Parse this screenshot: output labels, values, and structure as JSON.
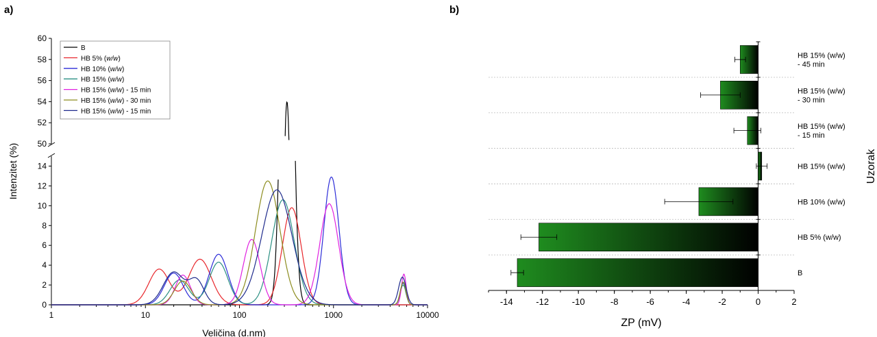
{
  "panels": {
    "a": "a)",
    "b": "b)"
  },
  "chart_data": [
    {
      "type": "line",
      "xlabel": "Veličina (d.nm)",
      "ylabel": "Intenzitet (%)",
      "xscale": "log",
      "xlim": [
        1,
        10000
      ],
      "x_ticks": [
        "1",
        "10",
        "100",
        "1000",
        "10000"
      ],
      "y_break": true,
      "y_lower": {
        "lim": [
          0,
          15
        ],
        "ticks": [
          "0",
          "2",
          "4",
          "6",
          "8",
          "10",
          "12",
          "14"
        ]
      },
      "y_upper": {
        "lim": [
          50,
          60
        ],
        "ticks": [
          "50",
          "52",
          "54",
          "56",
          "58",
          "60"
        ]
      },
      "legend_position": "top-left",
      "series": [
        {
          "name": "B",
          "name_parts": [
            "B"
          ],
          "color": "#000000",
          "peaks": [
            {
              "x": 320,
              "y": 54.0,
              "w": 0.055
            }
          ]
        },
        {
          "name": "HB 5% (w/w)",
          "name_parts": [
            "HB 5% (",
            "w/w",
            ")"
          ],
          "color": "#e8262b",
          "peaks": [
            {
              "x": 14,
              "y": 3.6,
              "w": 0.11
            },
            {
              "x": 38,
              "y": 4.6,
              "w": 0.12
            },
            {
              "x": 360,
              "y": 9.8,
              "w": 0.1
            }
          ]
        },
        {
          "name": "HB 10% (w/w)",
          "name_parts": [
            "HB 10% (",
            "w/w",
            ")"
          ],
          "color": "#2b2bd8",
          "peaks": [
            {
              "x": 20,
              "y": 3.2,
              "w": 0.1
            },
            {
              "x": 60,
              "y": 5.1,
              "w": 0.1
            },
            {
              "x": 950,
              "y": 12.9,
              "w": 0.08
            },
            {
              "x": 5500,
              "y": 2.2,
              "w": 0.03
            }
          ]
        },
        {
          "name": "HB 15% (w/w)",
          "name_parts": [
            "HB 15% (",
            "w/w",
            ")"
          ],
          "color": "#2a8f82",
          "peaks": [
            {
              "x": 23,
              "y": 2.5,
              "w": 0.1
            },
            {
              "x": 60,
              "y": 4.3,
              "w": 0.1
            },
            {
              "x": 290,
              "y": 10.6,
              "w": 0.12
            },
            {
              "x": 5500,
              "y": 2.0,
              "w": 0.03
            }
          ]
        },
        {
          "name": "HB 15% (w/w) - 15 min",
          "name_parts": [
            "HB 15% (",
            "w/w",
            ") - 15 min"
          ],
          "color": "#e020e0",
          "peaks": [
            {
              "x": 25,
              "y": 3.0,
              "w": 0.08
            },
            {
              "x": 135,
              "y": 6.6,
              "w": 0.09
            },
            {
              "x": 900,
              "y": 10.2,
              "w": 0.1
            },
            {
              "x": 5600,
              "y": 3.1,
              "w": 0.025
            }
          ]
        },
        {
          "name": "HB 15% (w/w) - 30 min",
          "name_parts": [
            "HB 15% (",
            "w/w",
            ") - 30 min"
          ],
          "color": "#8c8c1e",
          "peaks": [
            {
              "x": 25,
              "y": 2.4,
              "w": 0.09
            },
            {
              "x": 200,
              "y": 12.5,
              "w": 0.13
            },
            {
              "x": 5500,
              "y": 2.3,
              "w": 0.03
            }
          ]
        },
        {
          "name": "HB 15% (w/w) - 15 min",
          "name_parts": [
            "HB 15% (",
            "w/w",
            ") - 15 min"
          ],
          "color": "#1e2a8c",
          "peaks": [
            {
              "x": 20,
              "y": 3.3,
              "w": 0.11
            },
            {
              "x": 35,
              "y": 2.4,
              "w": 0.08
            },
            {
              "x": 250,
              "y": 11.6,
              "w": 0.16
            },
            {
              "x": 5400,
              "y": 2.8,
              "w": 0.04
            }
          ]
        }
      ]
    },
    {
      "type": "bar",
      "orientation": "horizontal",
      "xlabel": "ZP (mV)",
      "ylabel": "Uzorak",
      "xlim": [
        -15,
        2
      ],
      "x_ticks": [
        "-14",
        "-12",
        "-10",
        "-8",
        "-6",
        "-4",
        "-2",
        "0",
        "2"
      ],
      "categories": [
        [
          "HB 15% (w/w)",
          "- 45 min"
        ],
        [
          "HB 15% (w/w)",
          "- 30 min"
        ],
        [
          "HB 15% (w/w)",
          "- 15 min"
        ],
        [
          "HB 15% (w/w)"
        ],
        [
          "HB 10% (w/w)"
        ],
        [
          "HB 5% (w/w)"
        ],
        [
          "B"
        ]
      ],
      "values": [
        -1.0,
        -2.1,
        -0.6,
        0.2,
        -3.3,
        -12.2,
        -13.4
      ],
      "errors": [
        0.3,
        1.1,
        0.75,
        0.3,
        1.9,
        1.0,
        0.35
      ],
      "bar_gradient": [
        "#1f8c1f",
        "#000000"
      ],
      "grid": "dashed horizontal separators"
    }
  ]
}
